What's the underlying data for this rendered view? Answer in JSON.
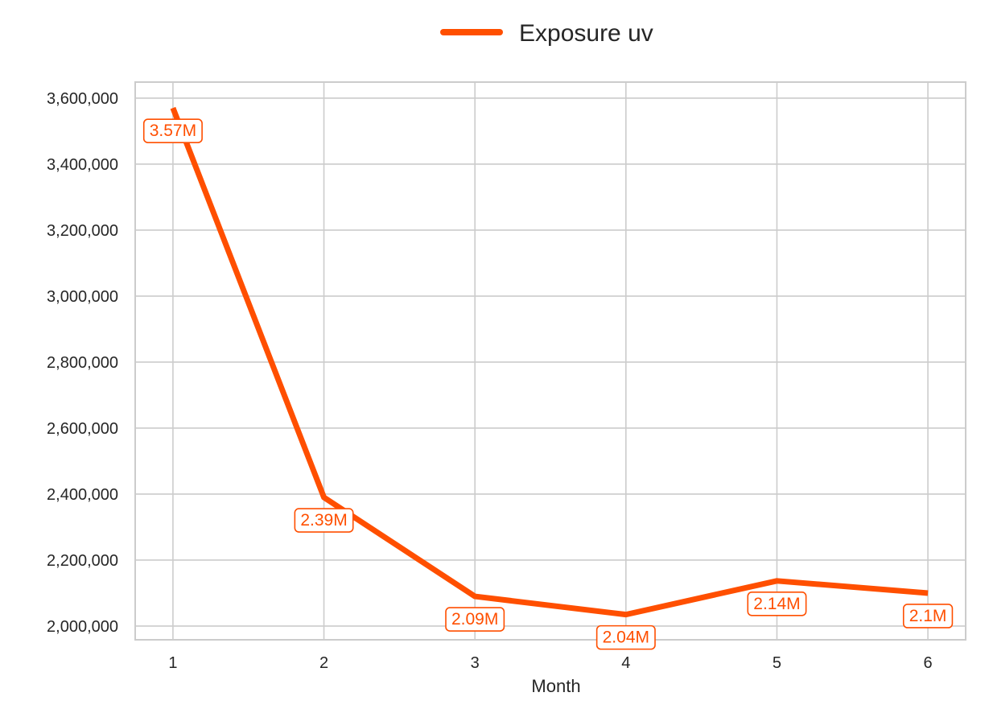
{
  "chart_data": {
    "type": "line",
    "xlabel": "Month",
    "ylabel": "",
    "x": [
      1,
      2,
      3,
      4,
      5,
      6
    ],
    "series": [
      {
        "name": "Exposure uv",
        "color": "#ff4f00",
        "values": [
          3570000,
          2390000,
          2090000,
          2035000,
          2137000,
          2100000
        ],
        "labels": [
          "3.57M",
          "2.39M",
          "2.09M",
          "2.04M",
          "2.14M",
          "2.1M"
        ]
      }
    ],
    "yticks": [
      2000000,
      2200000,
      2400000,
      2600000,
      2800000,
      3000000,
      3200000,
      3400000,
      3600000
    ],
    "ytick_labels": [
      "2,000,000",
      "2,200,000",
      "2,400,000",
      "2,600,000",
      "2,800,000",
      "3,000,000",
      "3,200,000",
      "3,400,000",
      "3,600,000"
    ],
    "xticks": [
      "1",
      "2",
      "3",
      "4",
      "5",
      "6"
    ],
    "xlim": [
      0.75,
      6.25
    ],
    "ylim": [
      1958500,
      3648500
    ],
    "grid": true,
    "legend_position": "top-center"
  }
}
